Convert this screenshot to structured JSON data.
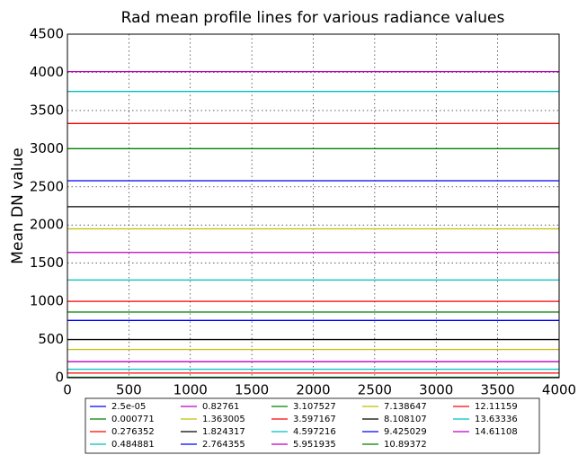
{
  "chart_data": {
    "type": "line",
    "title": "Rad mean profile lines for various radiance values",
    "y_label": "Mean DN value",
    "x": [
      0,
      4000
    ],
    "xlim": [
      0,
      4000
    ],
    "xticks": [
      0,
      500,
      1000,
      1500,
      2000,
      2500,
      3000,
      3500,
      4000
    ],
    "ylim": [
      0,
      4500
    ],
    "yticks": [
      0,
      500,
      1000,
      1500,
      2000,
      2500,
      3000,
      3500,
      4000,
      4500
    ],
    "grid": true,
    "legend": "below",
    "series": [
      {
        "name": "2.5e-05",
        "color": "#0000ff",
        "values": [
          0,
          0
        ]
      },
      {
        "name": "0.000771",
        "color": "#008000",
        "values": [
          5,
          5
        ]
      },
      {
        "name": "0.276352",
        "color": "#ff0000",
        "values": [
          60,
          60
        ]
      },
      {
        "name": "0.484881",
        "color": "#00bfbf",
        "values": [
          110,
          110
        ]
      },
      {
        "name": "0.82761",
        "color": "#bf00bf",
        "values": [
          210,
          210
        ]
      },
      {
        "name": "1.363005",
        "color": "#bfbf00",
        "values": [
          370,
          370
        ]
      },
      {
        "name": "1.824317",
        "color": "#000000",
        "values": [
          500,
          500
        ]
      },
      {
        "name": "2.764355",
        "color": "#0000ff",
        "values": [
          750,
          750
        ]
      },
      {
        "name": "3.107527",
        "color": "#008000",
        "values": [
          860,
          860
        ]
      },
      {
        "name": "3.597167",
        "color": "#ff0000",
        "values": [
          1000,
          1000
        ]
      },
      {
        "name": "4.597216",
        "color": "#00bfbf",
        "values": [
          1280,
          1280
        ]
      },
      {
        "name": "5.951935",
        "color": "#bf00bf",
        "values": [
          1640,
          1640
        ]
      },
      {
        "name": "7.138647",
        "color": "#bfbf00",
        "values": [
          1950,
          1950
        ]
      },
      {
        "name": "8.108107",
        "color": "#000000",
        "values": [
          2240,
          2240
        ]
      },
      {
        "name": "9.425029",
        "color": "#0000ff",
        "values": [
          2580,
          2580
        ]
      },
      {
        "name": "10.89372",
        "color": "#008000",
        "values": [
          3000,
          3000
        ]
      },
      {
        "name": "12.11159",
        "color": "#ff0000",
        "values": [
          3330,
          3330
        ]
      },
      {
        "name": "13.63336",
        "color": "#00bfbf",
        "values": [
          3750,
          3750
        ]
      },
      {
        "name": "14.61108",
        "color": "#bf00bf",
        "values": [
          4010,
          4010
        ]
      }
    ]
  }
}
